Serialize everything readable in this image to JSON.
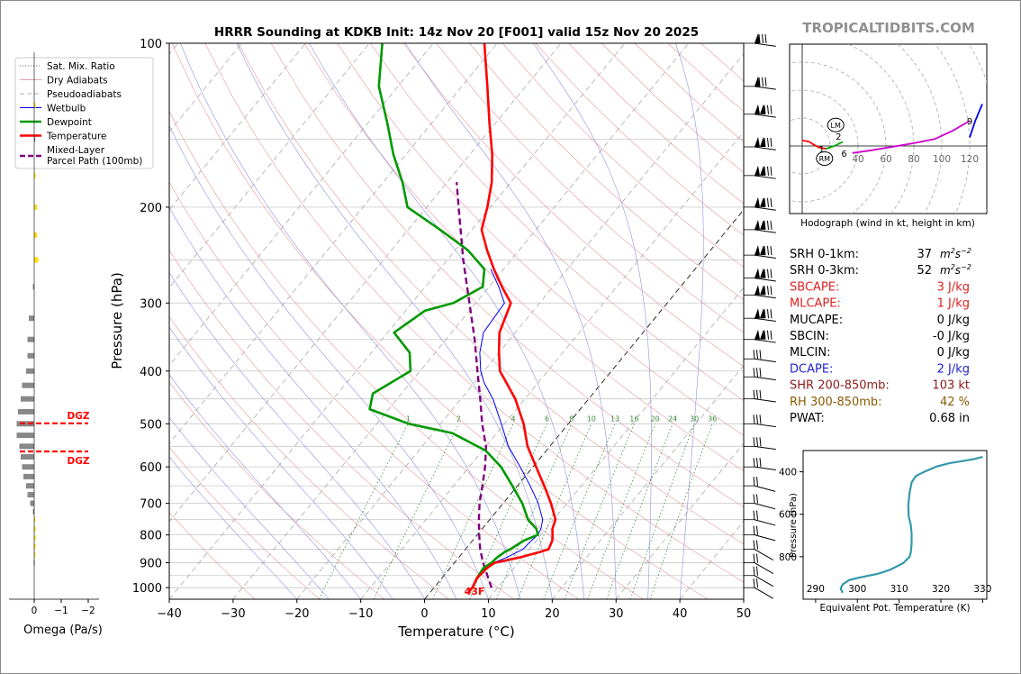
{
  "title": "HRRR Sounding at KDKB Init: 14z Nov 20 [F001] valid 15z Nov 20 2025",
  "watermark": "TROPICALTIDBITS.COM",
  "main_plot": {
    "ylabel": "Pressure (hPa)",
    "xlabel": "Temperature (°C)",
    "pressure_ticks": [
      "100",
      "200",
      "300",
      "400",
      "500",
      "600",
      "700",
      "800",
      "900",
      "1000"
    ],
    "temperature_ticks": [
      "−40",
      "−30",
      "−20",
      "−10",
      "0",
      "10",
      "20",
      "30",
      "40",
      "50"
    ],
    "surface_temp_label": "43F",
    "mixing_ratio_labels": [
      "1",
      "2",
      "4",
      "6",
      "8",
      "10",
      "13",
      "16",
      "20",
      "24",
      "30",
      "36"
    ]
  },
  "legend": [
    {
      "label": "Sat. Mix. Ratio",
      "style": "dotted",
      "color": "#3a8a3a"
    },
    {
      "label": "Dry Adiabats",
      "style": "solid-thin",
      "color": "#e08080"
    },
    {
      "label": "Pseudoadiabats",
      "style": "dashed-thin",
      "color": "#999999"
    },
    {
      "label": "Wetbulb",
      "style": "solid",
      "color": "#0000ff"
    },
    {
      "label": "Dewpoint",
      "style": "solid-thick",
      "color": "#009900"
    },
    {
      "label": "Temperature",
      "style": "solid-thick",
      "color": "#ff0000"
    },
    {
      "label": "Mixed-Layer\nParcel Path (100mb)",
      "style": "dashed-thick",
      "color": "#800080"
    }
  ],
  "omega_panel": {
    "xlabel": "Omega (Pa/s)",
    "ticks": [
      "0",
      "−1",
      "−2"
    ],
    "dgz_label": "DGZ"
  },
  "hodograph": {
    "caption": "Hodograph (wind in kt, height in km)",
    "ring_labels": [
      "40",
      "60",
      "80",
      "100",
      "120"
    ],
    "height_labels": [
      "1",
      "2",
      "6",
      "9"
    ],
    "marker_labels": [
      "LM",
      "RM"
    ]
  },
  "indices": [
    {
      "label": "SRH 0-1km:",
      "value": "37",
      "unit": "m2s-2",
      "color": "#000000"
    },
    {
      "label": "SRH 0-3km:",
      "value": "52",
      "unit": "m2s-2",
      "color": "#000000"
    },
    {
      "label": "SBCAPE:",
      "value": "3 J/kg",
      "color": "#dd2222"
    },
    {
      "label": "MLCAPE:",
      "value": "1 J/kg",
      "color": "#dd2222"
    },
    {
      "label": "MUCAPE:",
      "value": "0 J/kg",
      "color": "#000000"
    },
    {
      "label": "SBCIN:",
      "value": "-0 J/kg",
      "color": "#000000"
    },
    {
      "label": "MLCIN:",
      "value": "0 J/kg",
      "color": "#000000"
    },
    {
      "label": "DCAPE:",
      "value": "2 J/kg",
      "color": "#2222cc"
    },
    {
      "label": "SHR 200-850mb:",
      "value": "103 kt",
      "color": "#8b1a1a"
    },
    {
      "label": "RH 300-850mb:",
      "value": "42 %",
      "color": "#8b5a00"
    },
    {
      "label": "PWAT:",
      "value": "0.68 in",
      "color": "#000000"
    }
  ],
  "theta_e_panel": {
    "ylabel": "Pressure (hPa)",
    "xlabel": "Equivalent Pot. Temperature (K)",
    "yticks": [
      "400",
      "600",
      "800"
    ],
    "xticks": [
      "290",
      "300",
      "310",
      "320",
      "330"
    ]
  },
  "colors": {
    "temperature": "#ff0000",
    "dewpoint": "#009900",
    "wetbulb": "#0000ff",
    "parcel": "#800080",
    "theta_e": "#3399aa",
    "dgz": "#ff0000",
    "omega_pos": "#888888",
    "omega_neg": "#ffdd00"
  },
  "chart_data": [
    {
      "type": "line",
      "title": "HRRR Sounding at KDKB Init: 14z Nov 20 [F001] valid 15z Nov 20 2025",
      "xlabel": "Temperature (°C)",
      "ylabel": "Pressure (hPa)",
      "xlim": [
        -40,
        50
      ],
      "ylim": [
        1050,
        100
      ],
      "y_scale": "log",
      "skew": "skew-T",
      "series": [
        {
          "name": "Temperature",
          "color": "#ff0000",
          "points": [
            [
              1025,
              6
            ],
            [
              1000,
              6
            ],
            [
              960,
              5.5
            ],
            [
              920,
              5.8
            ],
            [
              900,
              6.3
            ],
            [
              880,
              9.5
            ],
            [
              860,
              12
            ],
            [
              850,
              13
            ],
            [
              820,
              12.5
            ],
            [
              800,
              11.8
            ],
            [
              780,
              11
            ],
            [
              750,
              10.3
            ],
            [
              700,
              7.5
            ],
            [
              650,
              4.2
            ],
            [
              600,
              0.5
            ],
            [
              550,
              -3.5
            ],
            [
              500,
              -7
            ],
            [
              450,
              -11.5
            ],
            [
              420,
              -15
            ],
            [
              400,
              -17.5
            ],
            [
              370,
              -20
            ],
            [
              340,
              -22.5
            ],
            [
              300,
              -24.5
            ],
            [
              280,
              -28
            ],
            [
              260,
              -31.5
            ],
            [
              240,
              -35
            ],
            [
              220,
              -38.5
            ],
            [
              200,
              -40.5
            ],
            [
              180,
              -43
            ],
            [
              160,
              -46.5
            ],
            [
              140,
              -51
            ],
            [
              120,
              -56
            ],
            [
              100,
              -62
            ]
          ]
        },
        {
          "name": "Dewpoint",
          "color": "#009900",
          "points": [
            [
              1000,
              6
            ],
            [
              960,
              5.5
            ],
            [
              920,
              5.2
            ],
            [
              900,
              5.8
            ],
            [
              880,
              6
            ],
            [
              860,
              6.5
            ],
            [
              850,
              7
            ],
            [
              820,
              8
            ],
            [
              800,
              9.5
            ],
            [
              780,
              8.5
            ],
            [
              750,
              6
            ],
            [
              700,
              3
            ],
            [
              650,
              -0.8
            ],
            [
              600,
              -5
            ],
            [
              560,
              -9.5
            ],
            [
              520,
              -17
            ],
            [
              500,
              -25
            ],
            [
              470,
              -33
            ],
            [
              440,
              -34.5
            ],
            [
              400,
              -31.5
            ],
            [
              370,
              -34
            ],
            [
              340,
              -39
            ],
            [
              310,
              -37
            ],
            [
              300,
              -33.5
            ],
            [
              280,
              -31
            ],
            [
              260,
              -33
            ],
            [
              240,
              -38
            ],
            [
              220,
              -45
            ],
            [
              200,
              -53
            ],
            [
              180,
              -57
            ],
            [
              160,
              -62
            ],
            [
              140,
              -67
            ],
            [
              120,
              -73
            ],
            [
              100,
              -78
            ]
          ]
        },
        {
          "name": "Wetbulb",
          "color": "#0000ff",
          "points": [
            [
              1000,
              6
            ],
            [
              960,
              5.5
            ],
            [
              920,
              5.5
            ],
            [
              900,
              6.1
            ],
            [
              880,
              7.5
            ],
            [
              860,
              8.5
            ],
            [
              850,
              9
            ],
            [
              820,
              9.2
            ],
            [
              800,
              9.5
            ],
            [
              780,
              9.2
            ],
            [
              750,
              8.3
            ],
            [
              700,
              5.5
            ],
            [
              650,
              2
            ],
            [
              600,
              -2
            ],
            [
              550,
              -6.5
            ],
            [
              500,
              -10.5
            ],
            [
              450,
              -15
            ],
            [
              420,
              -18.5
            ],
            [
              400,
              -20.5
            ],
            [
              370,
              -23
            ],
            [
              340,
              -25
            ],
            [
              300,
              -25.5
            ],
            [
              280,
              -28.5
            ],
            [
              260,
              -32
            ]
          ]
        },
        {
          "name": "Mixed-Layer Parcel Path (100mb)",
          "color": "#800080",
          "points": [
            [
              1000,
              9
            ],
            [
              950,
              6.8
            ],
            [
              900,
              4.5
            ],
            [
              850,
              2.3
            ],
            [
              800,
              0.3
            ],
            [
              750,
              -1.7
            ],
            [
              700,
              -3.7
            ],
            [
              650,
              -5.5
            ],
            [
              600,
              -7.5
            ],
            [
              550,
              -10
            ],
            [
              500,
              -13.5
            ],
            [
              450,
              -17
            ],
            [
              400,
              -21
            ],
            [
              350,
              -25.5
            ],
            [
              300,
              -31
            ],
            [
              250,
              -37.5
            ],
            [
              200,
              -45
            ],
            [
              180,
              -48.5
            ]
          ]
        }
      ]
    },
    {
      "type": "line",
      "title": "",
      "xlabel": "Equivalent Pot. Temperature (K)",
      "ylabel": "Pressure (hPa)",
      "xlim": [
        287,
        331
      ],
      "ylim": [
        1000,
        300
      ],
      "series": [
        {
          "name": "",
          "color": "#3399aa",
          "points": [
            [
              296.5,
              970
            ],
            [
              296,
              950
            ],
            [
              296.5,
              930
            ],
            [
              298,
              910
            ],
            [
              300,
              900
            ],
            [
              305,
              880
            ],
            [
              308,
              860
            ],
            [
              311,
              830
            ],
            [
              312.5,
              800
            ],
            [
              312.8,
              780
            ],
            [
              313,
              740
            ],
            [
              313,
              690
            ],
            [
              312.8,
              650
            ],
            [
              312.3,
              610
            ],
            [
              312.2,
              560
            ],
            [
              312.5,
              500
            ],
            [
              313,
              450
            ],
            [
              314,
              420
            ],
            [
              316,
              400
            ],
            [
              319,
              375
            ],
            [
              322,
              360
            ],
            [
              325,
              350
            ],
            [
              328,
              340
            ],
            [
              330,
              330
            ]
          ]
        }
      ]
    },
    {
      "type": "line",
      "title": "Hodograph (wind in kt, height in km)",
      "xlabel": "",
      "ylabel": "",
      "series": [
        {
          "name": "",
          "color": "#ff0000",
          "points": [
            [
              0,
              4
            ],
            [
              5,
              3
            ],
            [
              8,
              1
            ],
            [
              12,
              -1
            ],
            [
              17,
              -2
            ]
          ]
        },
        {
          "name": "",
          "color": "#00aa00",
          "points": [
            [
              17,
              -2
            ],
            [
              23,
              0
            ],
            [
              29,
              3
            ]
          ]
        },
        {
          "name": "",
          "color": "#cc00cc",
          "points": [
            [
              36,
              -5
            ],
            [
              50,
              -3
            ],
            [
              65,
              -0.5
            ],
            [
              80,
              2
            ],
            [
              95,
              5
            ],
            [
              108,
              11
            ],
            [
              120,
              18
            ]
          ]
        },
        {
          "name": "",
          "color": "#0000ff",
          "points": [
            [
              120,
              6
            ],
            [
              124,
              18
            ],
            [
              129,
              30
            ]
          ]
        }
      ]
    },
    {
      "type": "bar",
      "title": "",
      "xlabel": "Omega (Pa/s)",
      "xlim": [
        0.3,
        -2.3
      ],
      "categories_pressure": [
        130,
        150,
        175,
        200,
        225,
        250,
        280,
        320,
        350,
        375,
        400,
        425,
        450,
        475,
        500,
        525,
        550,
        575,
        600,
        625,
        650,
        675,
        700,
        725,
        750,
        780,
        810,
        840,
        870,
        900
      ],
      "values": [
        -0.05,
        0,
        -0.05,
        -0.1,
        -0.1,
        -0.15,
        0.05,
        0.2,
        0.25,
        0.25,
        0.3,
        0.45,
        0.5,
        0.6,
        0.65,
        0.65,
        0.55,
        0.5,
        0.45,
        0.4,
        0.3,
        0.25,
        0.15,
        0.05,
        -0.02,
        -0.05,
        -0.05,
        -0.05,
        -0.03,
        0.02
      ]
    }
  ]
}
